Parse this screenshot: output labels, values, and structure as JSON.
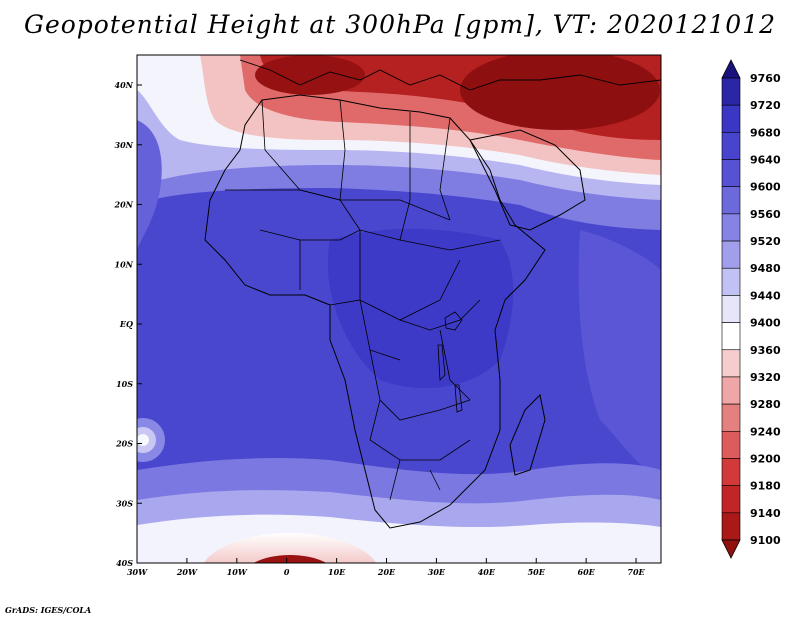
{
  "map": {
    "title": "Geopotential Height at 300hPa [gpm], VT: 2020121012",
    "region": "Africa and surrounding oceans",
    "lon_labels": [
      "30W",
      "20W",
      "10W",
      "0",
      "10E",
      "20E",
      "30E",
      "40E",
      "50E",
      "60E",
      "70E"
    ],
    "lat_labels": [
      "40N",
      "30N",
      "20N",
      "10N",
      "EQ",
      "10S",
      "20S",
      "30S",
      "40S"
    ],
    "field": "geopotential height at 300hPa"
  },
  "legend": {
    "levels": [
      "9760",
      "9720",
      "9680",
      "9640",
      "9600",
      "9560",
      "9520",
      "9480",
      "9440",
      "9400",
      "9360",
      "9320",
      "9280",
      "9240",
      "9200",
      "9180",
      "9140",
      "9100"
    ],
    "colors": [
      "#1a137e",
      "#2b26a5",
      "#3b37c5",
      "#4844ce",
      "#5652d3",
      "#6c69db",
      "#8583e4",
      "#a19fec",
      "#c2c1f4",
      "#e6e6fb",
      "#ffffff",
      "#f6cdcd",
      "#eea6a6",
      "#e58080",
      "#dc5b5b",
      "#d23a3a",
      "#c22525",
      "#ab1818",
      "#911010"
    ]
  },
  "footer": "GrADS: IGES/COLA"
}
